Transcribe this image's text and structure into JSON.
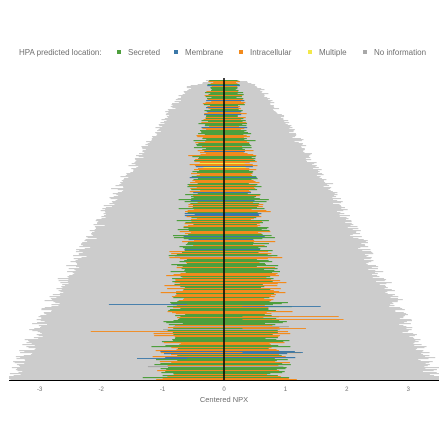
{
  "chart_data": {
    "type": "bar",
    "title": "",
    "xlabel": "Centered NPX",
    "ylabel": "",
    "xlim": [
      -3.5,
      3.5
    ],
    "x_ticks": [
      "-3",
      "-2",
      "-1",
      "0",
      "1",
      "2",
      "3"
    ],
    "x_tick_values": [
      -3,
      -2,
      -1,
      0,
      1,
      2,
      3
    ],
    "grid": false,
    "legend_position": "top",
    "legend": {
      "title": "HPA predicted location:",
      "entries": [
        {
          "label": "Secreted",
          "color": "#4e9f3d"
        },
        {
          "label": "Membrane",
          "color": "#3b78a8"
        },
        {
          "label": "Intracellular",
          "color": "#f28a1c"
        },
        {
          "label": "Multiple",
          "color": "#f2e84a"
        },
        {
          "label": "No information",
          "color": "#a8a8a8"
        }
      ]
    },
    "background_range_color": "#cccccc",
    "zero_line_color": "#000000",
    "n_proteins": 300,
    "envelope": {
      "background_halfwidth_top": 0.45,
      "background_halfwidth_bottom": 3.5,
      "category_halfwidth_top": 0.2,
      "category_halfwidth_bottom": 1.0
    }
  }
}
